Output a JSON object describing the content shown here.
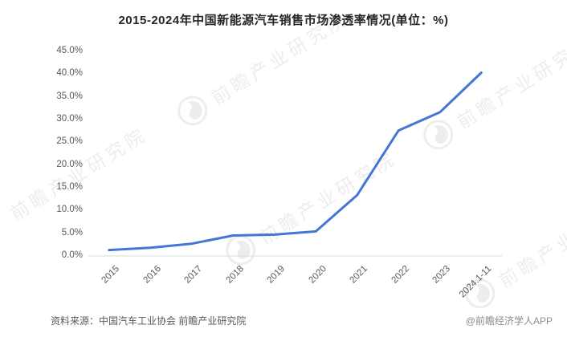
{
  "title": "2015-2024年中国新能源汽车销售市场渗透率情况(单位：%)",
  "footer": {
    "source_label": "资料来源：中国汽车工业协会 前瞻产业研究院",
    "credit_label": "@前瞻经济学人APP"
  },
  "watermark": {
    "brand_text": "前瞻产业研究院",
    "logo_name": "qianzhan-swirl-logo"
  },
  "colors": {
    "line": "#4576D4",
    "title_text": "#262626",
    "axis_text": "#595959",
    "source_text": "#595959",
    "credit_text": "#8C8C8C",
    "baseline": "#D9D9D9",
    "watermark": "#EDEDED"
  },
  "chart_data": {
    "type": "line",
    "title": "2015-2024年中国新能源汽车销售市场渗透率情况(单位：%)",
    "categories": [
      "2015",
      "2016",
      "2017",
      "2018",
      "2019",
      "2020",
      "2021",
      "2022",
      "2023",
      "2024.1-11"
    ],
    "series": [
      {
        "name": "新能源汽车销售市场渗透率",
        "values": [
          1.3,
          1.8,
          2.7,
          4.5,
          4.7,
          5.4,
          13.4,
          27.6,
          31.6,
          40.3
        ]
      }
    ],
    "xlabel": "",
    "ylabel": "",
    "ylim": [
      0,
      45
    ],
    "ytick_step": 5,
    "ytick_labels": [
      "0.0%",
      "5.0%",
      "10.0%",
      "15.0%",
      "20.0%",
      "25.0%",
      "30.0%",
      "35.0%",
      "40.0%",
      "45.0%"
    ],
    "grid": "baseline-only",
    "legend_position": "none"
  }
}
